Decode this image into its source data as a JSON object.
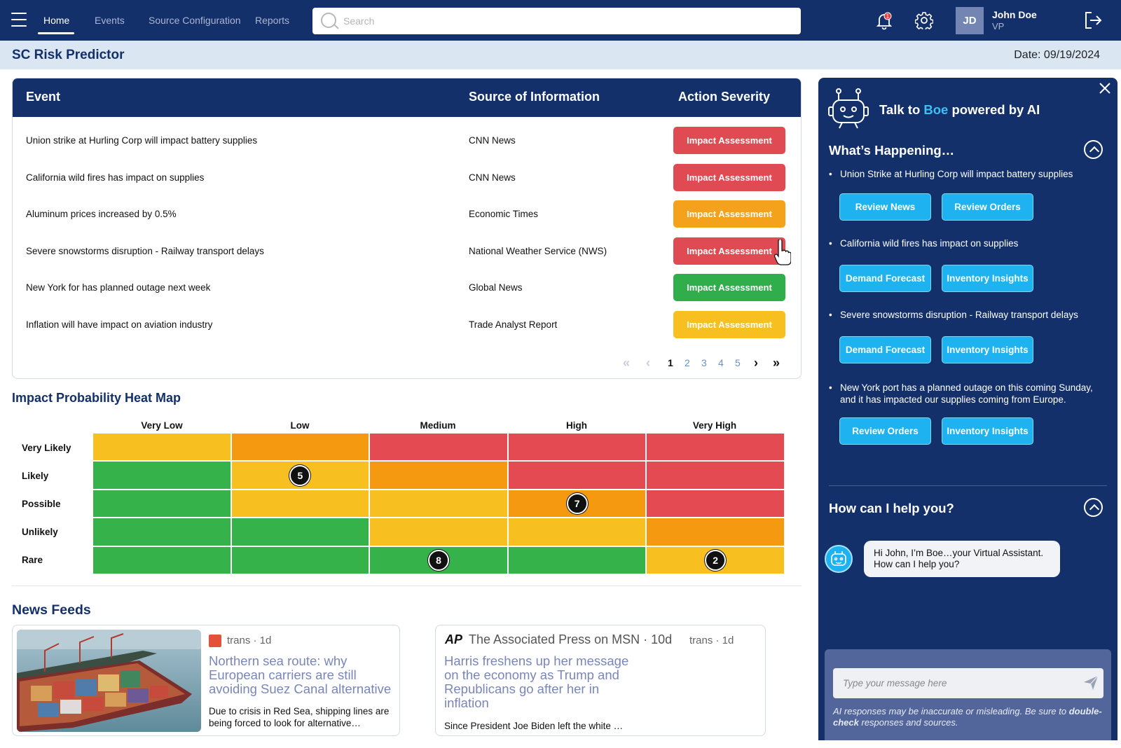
{
  "nav": {
    "items": [
      {
        "label": "Home",
        "active": true
      },
      {
        "label": "Events",
        "active": false
      },
      {
        "label": "Source Configuration",
        "active": false
      },
      {
        "label": "Reports",
        "active": false
      }
    ],
    "search_placeholder": "Search",
    "notification_count": "1",
    "user": {
      "initials": "JD",
      "name": "John Doe",
      "role": "VP"
    }
  },
  "header": {
    "title": "SC Risk Predictor",
    "date": "Date: 09/19/2024"
  },
  "events": {
    "columns": [
      "Event",
      "Source of Information",
      "Action Severity"
    ],
    "rows": [
      {
        "event": "Union strike at Hurling Corp will impact battery supplies",
        "source": "CNN News",
        "action": "Impact Assessment",
        "severity_color": "#e04a52"
      },
      {
        "event": "California wild fires has impact on supplies",
        "source": "CNN News",
        "action": "Impact Assessment",
        "severity_color": "#e04a52"
      },
      {
        "event": "Aluminum prices increased by 0.5%",
        "source": "Economic Times",
        "action": "Impact Assessment",
        "severity_color": "#f4a11c"
      },
      {
        "event": "Severe snowstorms disruption - Railway transport delays",
        "source": "National Weather Service (NWS)",
        "action": "Impact Assessment",
        "severity_color": "#e04a52"
      },
      {
        "event": "New York for has planned outage next week",
        "source": "Global News",
        "action": "Impact Assessment",
        "severity_color": "#2fae4b"
      },
      {
        "event": "Inflation will have impact on aviation industry",
        "source": "Trade Analyst Report",
        "action": "Impact Assessment",
        "severity_color": "#f7c020"
      }
    ],
    "pagination": {
      "pages": [
        "1",
        "2",
        "3",
        "4",
        "5"
      ],
      "current": "1"
    }
  },
  "heatmap": {
    "title": "Impact Probability Heat Map",
    "impact_levels": [
      "Very Low",
      "Low",
      "Medium",
      "High",
      "Very High"
    ],
    "likelihood_levels": [
      "Very Likely",
      "Likely",
      "Possible",
      "Unlikely",
      "Rare"
    ],
    "colors": {
      "green": "#36b24a",
      "yellow": "#f7c020",
      "orange": "#f59a10",
      "red": "#e34a52"
    },
    "cells": [
      [
        "yellow",
        "orange",
        "red",
        "red",
        "red"
      ],
      [
        "green",
        "yellow",
        "orange",
        "red",
        "red"
      ],
      [
        "green",
        "yellow",
        "yellow",
        "orange",
        "red"
      ],
      [
        "green",
        "green",
        "yellow",
        "yellow",
        "orange"
      ],
      [
        "green",
        "green",
        "green",
        "green",
        "yellow"
      ]
    ],
    "counts": [
      {
        "likelihood": "Likely",
        "impact": "Low",
        "value": "5"
      },
      {
        "likelihood": "Possible",
        "impact": "High",
        "value": "7"
      },
      {
        "likelihood": "Rare",
        "impact": "Medium",
        "value": "8"
      },
      {
        "likelihood": "Rare",
        "impact": "Very High",
        "value": "2"
      }
    ]
  },
  "news": {
    "title": "News Feeds",
    "items": [
      {
        "source": "trans · 1d",
        "headline": "Northern sea route: why European carriers are still avoiding Suez Canal alternative",
        "snippet": "Due to crisis in Red Sea, shipping lines are being forced to look for alternative…"
      },
      {
        "logo": "AP",
        "publisher": "The Associated Press on MSN · 10d",
        "source": "trans · 1d",
        "headline": "Harris freshens up her message on the economy as Trump and Republicans go after her in inflation",
        "snippet": "Since President Joe Biden left the white …"
      }
    ]
  },
  "assistant": {
    "title_prefix": "Talk to ",
    "title_name": "Boe",
    "title_suffix": " powered by AI",
    "whats_happening": "What’s Happening…",
    "items": [
      {
        "text": "Union Strike at Hurling Corp will impact battery supplies",
        "actions": [
          "Review News",
          "Review Orders"
        ]
      },
      {
        "text": "California wild fires has impact on supplies",
        "actions": [
          "Demand Forecast",
          "Inventory Insights"
        ]
      },
      {
        "text": "Severe snowstorms disruption - Railway transport delays",
        "actions": [
          "Demand Forecast",
          "Inventory Insights"
        ]
      },
      {
        "text": "New York port has a planned outage on this coming Sunday, and it has impacted our supplies coming from Europe.",
        "actions": [
          "Review Orders",
          "Inventory Insights"
        ]
      }
    ],
    "help_title": "How can I help you?",
    "greeting_line1": "Hi John, I’m Boe…your Virtual Assistant.",
    "greeting_line2": "How can I help you?",
    "input_placeholder": "Type your message here",
    "disclaimer_pre": "AI responses may be inaccurate or misleading. Be sure to ",
    "disclaimer_bold": "double-check",
    "disclaimer_post": " responses and sources."
  }
}
